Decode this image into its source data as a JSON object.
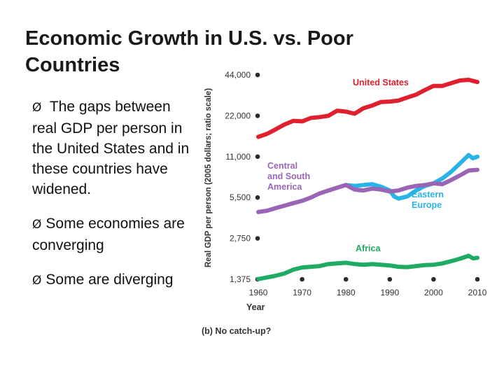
{
  "slide": {
    "title": "Economic Growth in U.S. vs. Poor Countries",
    "bullets": [
      {
        "marker": "Ø",
        "text": " The gaps between real GDP per person in the United States and in these countries have widened."
      },
      {
        "marker": "Ø",
        "text": "Some economies are converging"
      },
      {
        "marker": "Ø",
        "text": "Some are diverging"
      }
    ]
  },
  "chart_data": {
    "type": "line",
    "scale": "log",
    "ylabel": "Real GDP per person (2005 dollars; ratio scale)",
    "xlabel": "Year",
    "caption": "(b) No catch-up?",
    "yticks": [
      1375,
      2750,
      5500,
      11000,
      22000,
      44000
    ],
    "ytick_labels": [
      "1,375",
      "2,750",
      "5,500",
      "11,000",
      "22,000",
      "44,000"
    ],
    "xticks": [
      1960,
      1970,
      1980,
      1990,
      2000,
      2010
    ],
    "xtick_labels": [
      "1960",
      "1970",
      "1980",
      "1990",
      "2000",
      "2010"
    ],
    "xlim": [
      1960,
      2010
    ],
    "ylim": [
      1375,
      44000
    ],
    "colors": {
      "axis": "#3a3a3a",
      "text": "#333333"
    },
    "series": [
      {
        "name": "United States",
        "label_lines": [
          "United States"
        ],
        "color": "#e0202e",
        "x": [
          1960,
          1962,
          1964,
          1966,
          1968,
          1970,
          1972,
          1974,
          1976,
          1978,
          1980,
          1982,
          1984,
          1986,
          1988,
          1990,
          1992,
          1994,
          1996,
          1998,
          2000,
          2002,
          2004,
          2006,
          2008,
          2010
        ],
        "y": [
          15400,
          16200,
          17500,
          19000,
          20200,
          20000,
          21200,
          21500,
          22000,
          24000,
          23600,
          22800,
          25000,
          26200,
          27800,
          28000,
          28500,
          30000,
          31500,
          34000,
          36500,
          36500,
          38200,
          40000,
          40500,
          39000
        ]
      },
      {
        "name": "Eastern Europe",
        "label_lines": [
          "Eastern",
          "Europe"
        ],
        "color": "#29b3e6",
        "x": [
          1980,
          1982,
          1984,
          1986,
          1988,
          1990,
          1991,
          1992,
          1994,
          1996,
          1998,
          2000,
          2002,
          2004,
          2006,
          2008,
          2009,
          2010
        ],
        "y": [
          6800,
          6700,
          6800,
          6900,
          6600,
          6200,
          5600,
          5400,
          5600,
          6200,
          6700,
          7000,
          7600,
          8500,
          9800,
          11300,
          10700,
          11000
        ]
      },
      {
        "name": "Central and South America",
        "label_lines": [
          "Central",
          "and South",
          "America"
        ],
        "color": "#9b65b5",
        "x": [
          1960,
          1962,
          1964,
          1966,
          1968,
          1970,
          1972,
          1974,
          1976,
          1978,
          1980,
          1982,
          1984,
          1986,
          1988,
          1990,
          1992,
          1994,
          1996,
          1998,
          2000,
          2002,
          2004,
          2006,
          2008,
          2010
        ],
        "y": [
          4300,
          4400,
          4600,
          4800,
          5000,
          5200,
          5500,
          5900,
          6200,
          6500,
          6800,
          6300,
          6200,
          6400,
          6300,
          6100,
          6200,
          6500,
          6700,
          6800,
          7000,
          6900,
          7400,
          8000,
          8700,
          8800
        ]
      },
      {
        "name": "Africa",
        "label_lines": [
          "Africa"
        ],
        "color": "#1fab63",
        "x": [
          1960,
          1962,
          1964,
          1966,
          1968,
          1970,
          1972,
          1974,
          1976,
          1978,
          1980,
          1982,
          1984,
          1986,
          1988,
          1990,
          1992,
          1994,
          1996,
          1998,
          2000,
          2002,
          2004,
          2006,
          2008,
          2009,
          2010
        ],
        "y": [
          1380,
          1420,
          1460,
          1520,
          1620,
          1680,
          1700,
          1720,
          1780,
          1800,
          1820,
          1780,
          1760,
          1780,
          1760,
          1740,
          1700,
          1690,
          1720,
          1750,
          1760,
          1800,
          1870,
          1950,
          2050,
          1960,
          1980
        ]
      }
    ]
  }
}
